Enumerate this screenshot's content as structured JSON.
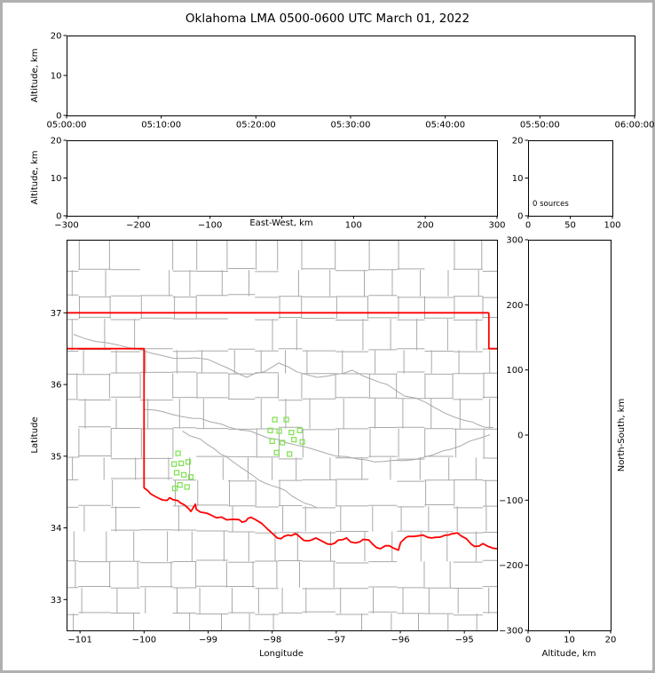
{
  "colors": {
    "frame": "#b0b0b0",
    "spine": "#000000",
    "county": "#a9a9a9",
    "state_border": "#ff0000",
    "source_marker": "#7ce24e",
    "text": "#000000"
  },
  "chart_data": {
    "type": "scatter",
    "title": "Oklahoma LMA 0500-0600 UTC March 01, 2022",
    "panels": [
      {
        "id": "time_altitude",
        "xlabel": "",
        "ylabel": "Altitude, km",
        "xlim": [
          0,
          3600
        ],
        "ylim": [
          0,
          20
        ],
        "xtick_values": [
          0,
          600,
          1200,
          1800,
          2400,
          3000,
          3600
        ],
        "xtick_labels": [
          "05:00:00",
          "05:10:00",
          "05:20:00",
          "05:30:00",
          "05:40:00",
          "05:50:00",
          "06:00:00"
        ],
        "ytick_values": [
          0,
          10,
          20
        ],
        "ytick_labels": [
          "0",
          "10",
          "20"
        ],
        "points": []
      },
      {
        "id": "ew_altitude",
        "xlabel": "East-West, km",
        "ylabel": "Altitude, km",
        "xlim": [
          -300,
          300
        ],
        "ylim": [
          0,
          20
        ],
        "xtick_values": [
          -300,
          -200,
          -100,
          0,
          100,
          200,
          300
        ],
        "xtick_labels": [
          "−300",
          "−200",
          "−100",
          "",
          "100",
          "200",
          "300"
        ],
        "ytick_values": [
          0,
          10,
          20
        ],
        "ytick_labels": [
          "0",
          "10",
          "20"
        ],
        "points": []
      },
      {
        "id": "source_histogram",
        "annotation": "0 sources",
        "xlim": [
          0,
          100
        ],
        "ylim": [
          0,
          20
        ],
        "xtick_values": [
          0,
          50,
          100
        ],
        "xtick_labels": [
          "0",
          "50",
          "100"
        ],
        "ytick_values": [
          0,
          10,
          20
        ],
        "ytick_labels": [
          "0",
          "10",
          "20"
        ],
        "points": []
      },
      {
        "id": "plan_map",
        "xlabel": "Longitude",
        "ylabel": "Latitude",
        "xlim": [
          -101.21,
          -94.49
        ],
        "ylim": [
          32.57,
          38.02
        ],
        "xtick_values": [
          -101,
          -100,
          -99,
          -98,
          -97,
          -96,
          -95
        ],
        "xtick_labels": [
          "−101",
          "−100",
          "−99",
          "−98",
          "−97",
          "−96",
          "−95"
        ],
        "ytick_values": [
          33,
          34,
          35,
          36,
          37
        ],
        "ytick_labels": [
          "33",
          "34",
          "35",
          "36",
          "37"
        ],
        "points": [
          [
            -99.47,
            35.04
          ],
          [
            -99.53,
            34.89
          ],
          [
            -99.42,
            34.9
          ],
          [
            -99.31,
            34.92
          ],
          [
            -99.49,
            34.77
          ],
          [
            -99.38,
            34.74
          ],
          [
            -99.27,
            34.71
          ],
          [
            -99.44,
            34.6
          ],
          [
            -99.33,
            34.57
          ],
          [
            -99.52,
            34.55
          ],
          [
            -97.96,
            35.51
          ],
          [
            -97.78,
            35.51
          ],
          [
            -98.03,
            35.36
          ],
          [
            -97.89,
            35.35
          ],
          [
            -97.7,
            35.33
          ],
          [
            -98.0,
            35.21
          ],
          [
            -97.84,
            35.19
          ],
          [
            -97.66,
            35.23
          ],
          [
            -97.53,
            35.2
          ],
          [
            -97.93,
            35.05
          ],
          [
            -97.73,
            35.03
          ],
          [
            -97.57,
            35.36
          ]
        ]
      },
      {
        "id": "ns_altitude",
        "xlabel": "Altitude, km",
        "ylabel": "North-South, km",
        "xlim": [
          0,
          20
        ],
        "ylim": [
          -300,
          300
        ],
        "xtick_values": [
          0,
          10,
          20
        ],
        "xtick_labels": [
          "0",
          "10",
          "20"
        ],
        "ytick_values": [
          300,
          200,
          100,
          0,
          -100,
          -200,
          -300
        ],
        "ytick_labels": [
          "300",
          "200",
          "100",
          "0",
          "−100",
          "−200",
          "−300"
        ],
        "points": []
      }
    ],
    "map_layers": {
      "county_grid": {
        "seed": 7
      },
      "state_border": [
        [
          [
            -101.21,
            37.0
          ],
          [
            -94.618,
            37.0
          ]
        ],
        [
          [
            -94.618,
            37.0
          ],
          [
            -94.618,
            36.5
          ],
          [
            -94.49,
            36.5
          ]
        ],
        [
          [
            -101.21,
            36.5
          ],
          [
            -100.0,
            36.5
          ],
          [
            -100.0,
            34.555
          ]
        ]
      ],
      "red_river": [
        [
          -100.0,
          34.555
        ],
        [
          -99.93,
          34.51
        ],
        [
          -99.83,
          34.44
        ],
        [
          -99.71,
          34.39
        ],
        [
          -99.6,
          34.42
        ],
        [
          -99.47,
          34.38
        ],
        [
          -99.37,
          34.32
        ],
        [
          -99.27,
          34.23
        ],
        [
          -99.2,
          34.33
        ],
        [
          -99.12,
          34.22
        ],
        [
          -98.96,
          34.18
        ],
        [
          -98.79,
          34.15
        ],
        [
          -98.61,
          34.12
        ],
        [
          -98.47,
          34.08
        ],
        [
          -98.38,
          34.13
        ],
        [
          -98.27,
          34.12
        ],
        [
          -98.16,
          34.06
        ],
        [
          -98.08,
          33.99
        ],
        [
          -97.96,
          33.89
        ],
        [
          -97.86,
          33.85
        ],
        [
          -97.75,
          33.9
        ],
        [
          -97.64,
          33.92
        ],
        [
          -97.55,
          33.86
        ],
        [
          -97.45,
          33.82
        ],
        [
          -97.32,
          33.86
        ],
        [
          -97.19,
          33.8
        ],
        [
          -97.08,
          33.77
        ],
        [
          -96.97,
          33.83
        ],
        [
          -96.84,
          33.86
        ],
        [
          -96.7,
          33.79
        ],
        [
          -96.58,
          33.84
        ],
        [
          -96.44,
          33.78
        ],
        [
          -96.31,
          33.71
        ],
        [
          -96.17,
          33.75
        ],
        [
          -96.03,
          33.69
        ],
        [
          -95.92,
          33.86
        ],
        [
          -95.79,
          33.88
        ],
        [
          -95.65,
          33.9
        ],
        [
          -95.51,
          33.86
        ],
        [
          -95.38,
          33.87
        ],
        [
          -95.25,
          33.9
        ],
        [
          -95.11,
          33.93
        ],
        [
          -94.97,
          33.85
        ],
        [
          -94.84,
          33.74
        ],
        [
          -94.71,
          33.78
        ],
        [
          -94.59,
          33.73
        ],
        [
          -94.49,
          33.71
        ]
      ],
      "rivers": [
        [
          [
            -101.1,
            36.7
          ],
          [
            -100.4,
            36.55
          ],
          [
            -99.7,
            36.4
          ],
          [
            -99.0,
            36.35
          ],
          [
            -98.4,
            36.1
          ],
          [
            -97.9,
            36.3
          ],
          [
            -97.3,
            36.1
          ],
          [
            -96.75,
            36.2
          ],
          [
            -96.2,
            36.0
          ],
          [
            -95.6,
            35.75
          ],
          [
            -95.0,
            35.5
          ],
          [
            -94.55,
            35.4
          ]
        ],
        [
          [
            -100.0,
            35.65
          ],
          [
            -99.4,
            35.55
          ],
          [
            -98.8,
            35.45
          ],
          [
            -98.2,
            35.3
          ],
          [
            -97.6,
            35.15
          ],
          [
            -97.0,
            35.0
          ],
          [
            -96.4,
            34.92
          ],
          [
            -95.8,
            34.95
          ],
          [
            -95.2,
            35.1
          ],
          [
            -94.6,
            35.3
          ]
        ],
        [
          [
            -99.4,
            35.35
          ],
          [
            -98.9,
            35.1
          ],
          [
            -98.5,
            34.85
          ],
          [
            -98.1,
            34.62
          ],
          [
            -97.7,
            34.45
          ],
          [
            -97.3,
            34.28
          ]
        ]
      ]
    }
  }
}
